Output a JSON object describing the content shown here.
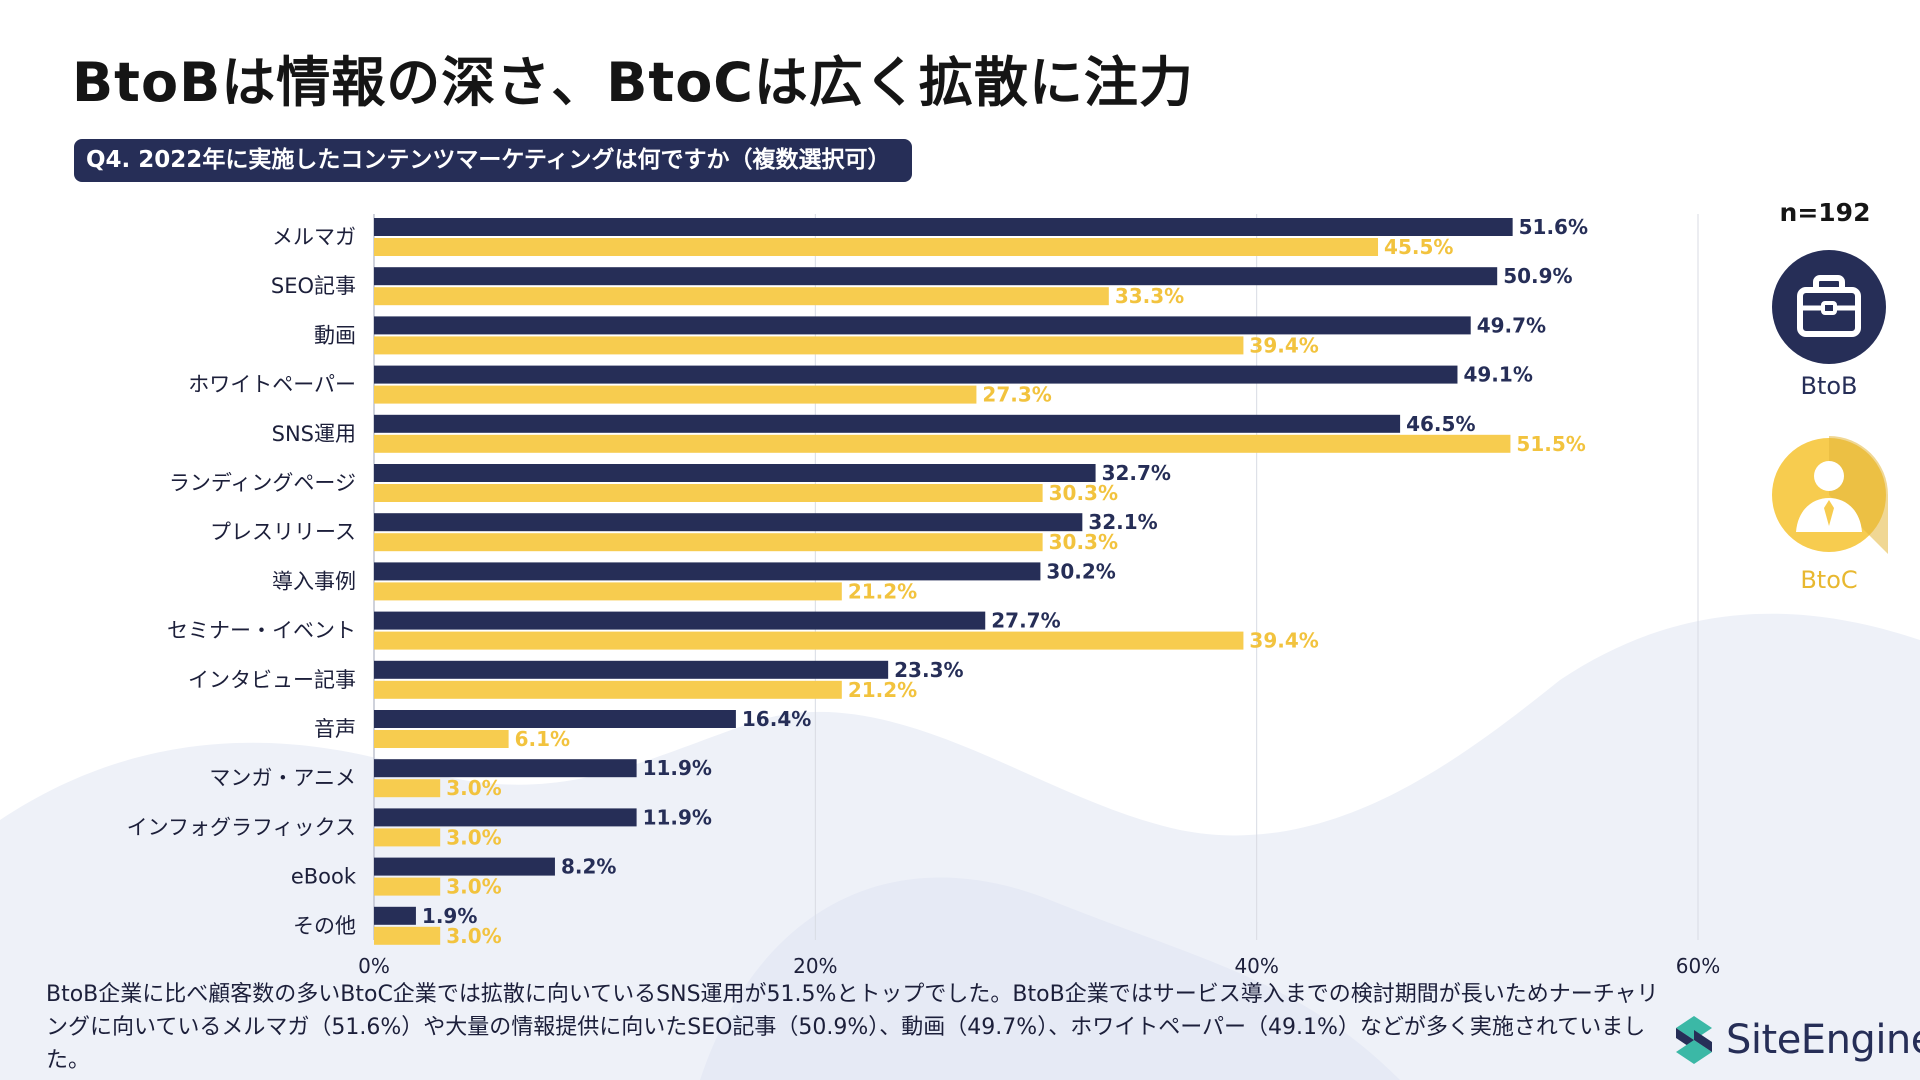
{
  "title": "BtoBは情報の深さ、BtoCは広く拡散に注力",
  "question": "Q4. 2022年に実施したコンテンツマーケティングは何ですか（複数選択可）",
  "sample_size": "n=192",
  "legend": {
    "btob": {
      "label": "BtoB",
      "color": "#262e57",
      "icon": "briefcase-icon"
    },
    "btoc": {
      "label": "BtoC",
      "color": "#f7cc4f",
      "icon": "person-icon"
    }
  },
  "footer": "BtoB企業に比べ顧客数の多いBtoC企業では拡散に向いているSNS運用が51.5%とトップでした。BtoB企業ではサービス導入までの検討期間が長いためナーチャリングに向いているメルマガ（51.6%）や大量の情報提供に向いたSEO記事（50.9%）、動画（49.7%）、ホワイトペーパー（49.1%）などが多く実施されていました。",
  "brand": {
    "name": "SiteEngine",
    "icon": "site-engine-logo-icon"
  },
  "chart_data": {
    "type": "bar",
    "orientation": "horizontal",
    "categories": [
      "メルマガ",
      "SEO記事",
      "動画",
      "ホワイトペーパー",
      "SNS運用",
      "ランディングページ",
      "プレスリリース",
      "導入事例",
      "セミナー・イベント",
      "インタビュー記事",
      "音声",
      "マンガ・アニメ",
      "インフォグラフィックス",
      "eBook",
      "その他"
    ],
    "series": [
      {
        "name": "BtoB",
        "color": "#262e57",
        "values": [
          51.6,
          50.9,
          49.7,
          49.1,
          46.5,
          32.7,
          32.1,
          30.2,
          27.7,
          23.3,
          16.4,
          11.9,
          11.9,
          8.2,
          1.9
        ]
      },
      {
        "name": "BtoC",
        "color": "#f7cc4f",
        "values": [
          45.5,
          33.3,
          39.4,
          27.3,
          51.5,
          30.3,
          30.3,
          21.2,
          39.4,
          21.2,
          6.1,
          3.0,
          3.0,
          3.0,
          3.0
        ]
      }
    ],
    "xlim": [
      0,
      60
    ],
    "xticks": [
      0,
      20,
      40,
      60
    ],
    "tick_suffix": "%",
    "value_suffix": "%",
    "grid": true
  }
}
